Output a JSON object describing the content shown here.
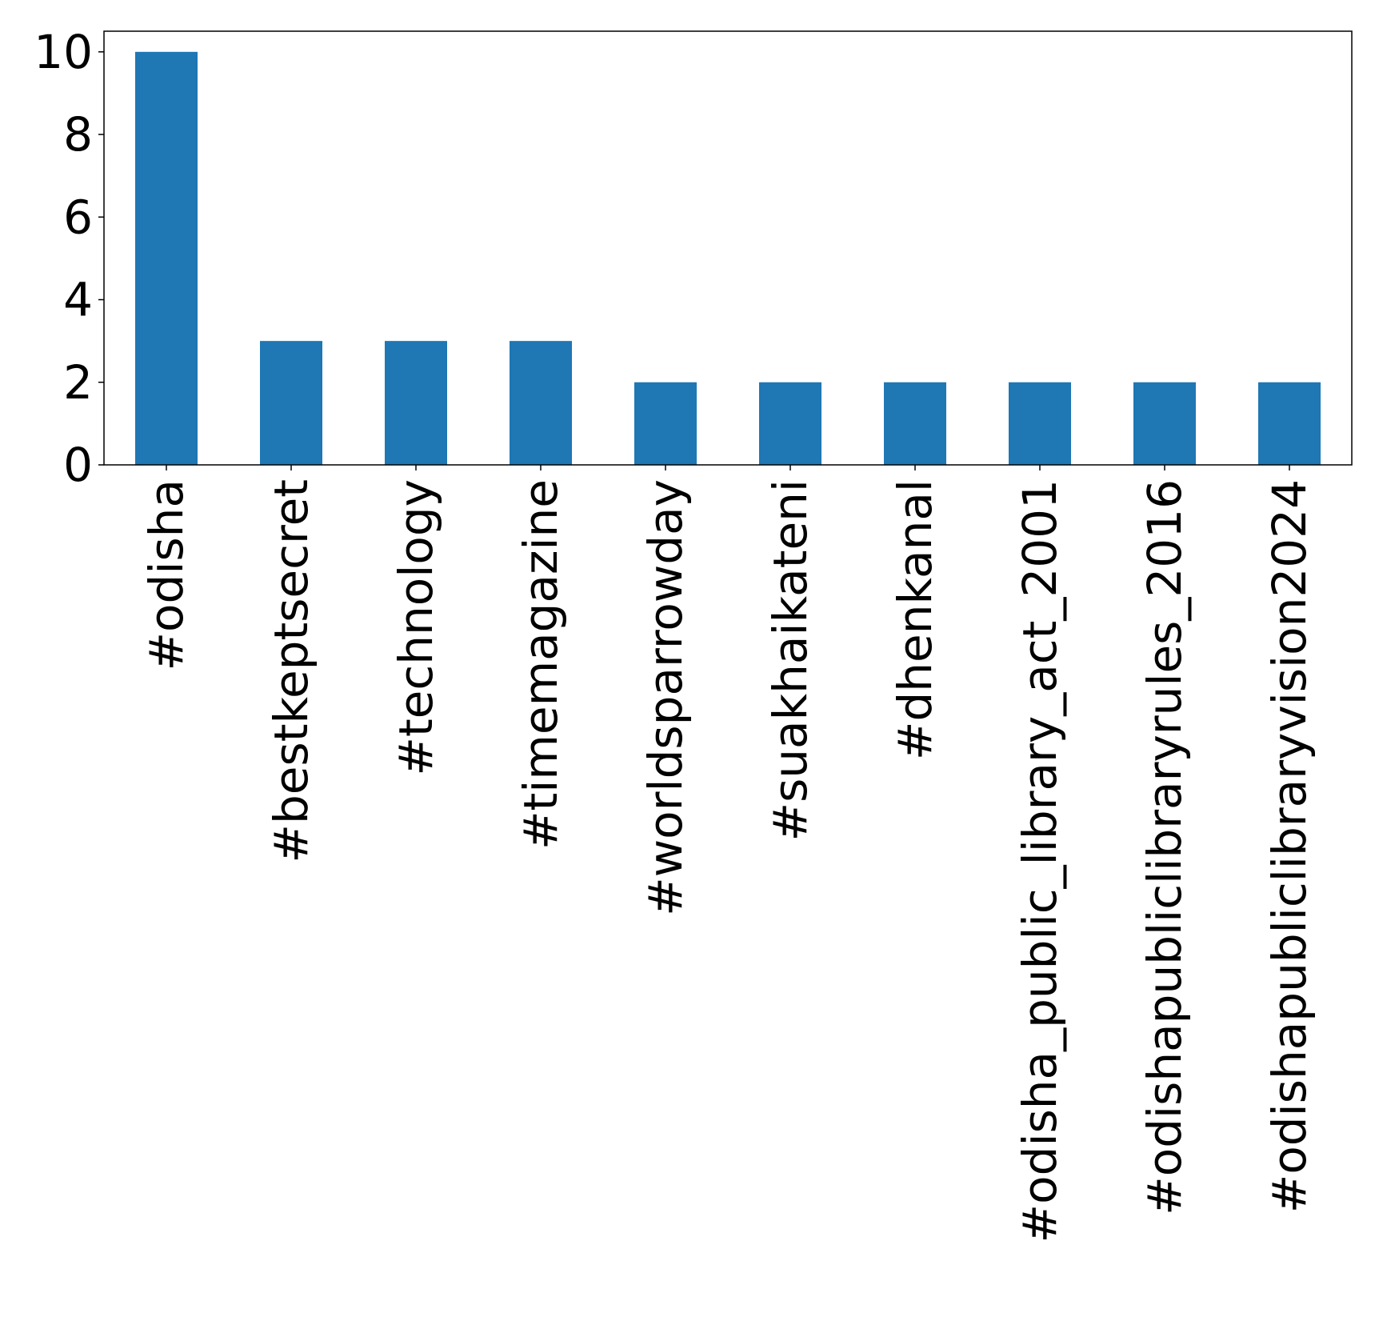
{
  "chart_data": {
    "type": "bar",
    "title": "",
    "xlabel": "",
    "ylabel": "",
    "categories": [
      "#odisha",
      "#bestkeptsecret",
      "#technology",
      "#timemagazine",
      "#worldsparrowday",
      "#suakhaikateni",
      "#dhenkanal",
      "#odisha_public_library_act_2001",
      "#odishapubliclibraryrules_2016",
      "#odishapubliclibraryvision2024"
    ],
    "values": [
      10,
      3,
      3,
      3,
      2,
      2,
      2,
      2,
      2,
      2
    ],
    "ylim": [
      0,
      10.5
    ],
    "yticks": [
      0,
      2,
      4,
      6,
      8,
      10
    ],
    "bar_color": "#1f77b4",
    "grid": false,
    "legend": "none"
  }
}
